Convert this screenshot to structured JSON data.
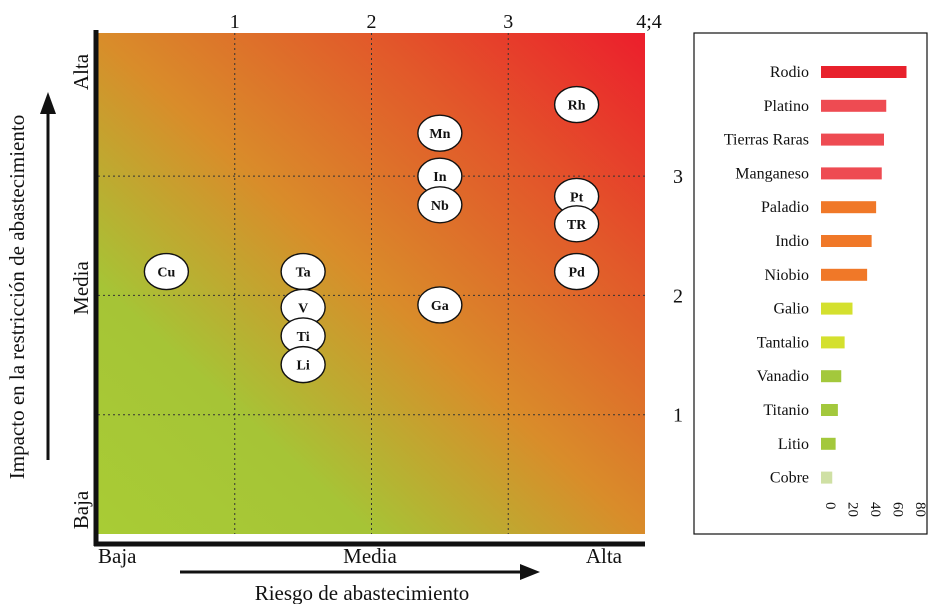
{
  "chart_data": [
    {
      "type": "scatter",
      "xlabel": "Riesgo de abastecimiento",
      "ylabel": "Impacto en la restricción de abastecimiento",
      "xlim": [
        0,
        4.0
      ],
      "ylim": [
        0,
        4.2
      ],
      "x_top_ticks": [
        "1",
        "2",
        "3",
        "4;4"
      ],
      "y_right_ticks": [
        "1",
        "2",
        "3"
      ],
      "x_categories": [
        "Baja",
        "Media",
        "Alta"
      ],
      "y_categories": [
        "Baja",
        "Media",
        "Alta"
      ],
      "grid": true,
      "background": "gradient green (bottom-left) to red (top-right)",
      "points": [
        {
          "label": "Cu",
          "x": 0.5,
          "y": 2.2
        },
        {
          "label": "Ta",
          "x": 1.5,
          "y": 2.2
        },
        {
          "label": "V",
          "x": 1.5,
          "y": 1.9
        },
        {
          "label": "Ti",
          "x": 1.5,
          "y": 1.66
        },
        {
          "label": "Li",
          "x": 1.5,
          "y": 1.42
        },
        {
          "label": "Mn",
          "x": 2.5,
          "y": 3.36
        },
        {
          "label": "In",
          "x": 2.5,
          "y": 3.0
        },
        {
          "label": "Nb",
          "x": 2.5,
          "y": 2.76
        },
        {
          "label": "Ga",
          "x": 2.5,
          "y": 1.92
        },
        {
          "label": "Rh",
          "x": 3.5,
          "y": 3.6
        },
        {
          "label": "Pt",
          "x": 3.5,
          "y": 2.83
        },
        {
          "label": "TR",
          "x": 3.5,
          "y": 2.6
        },
        {
          "label": "Pd",
          "x": 3.5,
          "y": 2.2
        }
      ]
    },
    {
      "type": "bar",
      "orientation": "horizontal",
      "categories": [
        "Rodio",
        "Platino",
        "Tierras Raras",
        "Manganeso",
        "Paladio",
        "Indio",
        "Niobio",
        "Galio",
        "Tantalio",
        "Vanadio",
        "Titanio",
        "Litio",
        "Cobre"
      ],
      "values": [
        76,
        58,
        56,
        54,
        49,
        45,
        41,
        28,
        21,
        18,
        15,
        13,
        10
      ],
      "colors": [
        "#e8212c",
        "#ee4b52",
        "#ee4b52",
        "#ee4b52",
        "#f07828",
        "#f07828",
        "#f07828",
        "#d4e02e",
        "#d4e02e",
        "#a3c83c",
        "#a3c83c",
        "#a3c83c",
        "#cfe0a4"
      ],
      "xticks": [
        "0",
        "20",
        "40",
        "60",
        "80"
      ],
      "xlim": [
        0,
        80
      ]
    }
  ]
}
